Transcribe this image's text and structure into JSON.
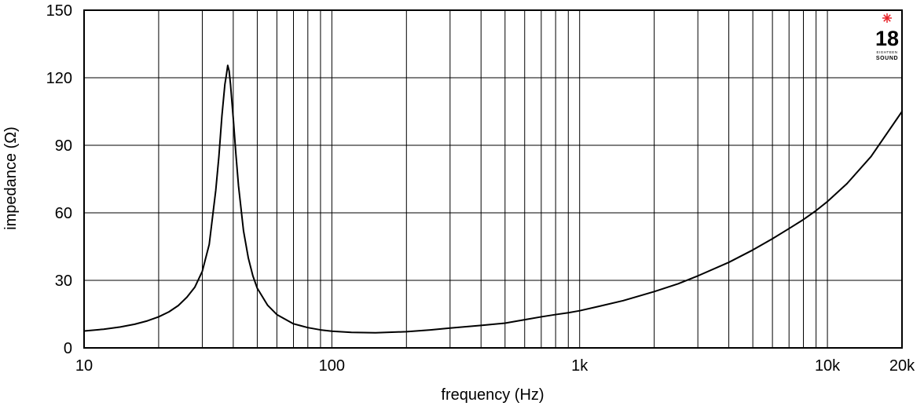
{
  "chart_data": {
    "type": "line",
    "title": "",
    "xlabel": "frequency (Hz)",
    "ylabel": "impedance (Ω)",
    "xscale": "log",
    "xlim": [
      10,
      20000
    ],
    "ylim": [
      0,
      150
    ],
    "grid": true,
    "x_ticks": [
      {
        "value": 10,
        "label": "10"
      },
      {
        "value": 100,
        "label": "100"
      },
      {
        "value": 1000,
        "label": "1k"
      },
      {
        "value": 10000,
        "label": "10k"
      },
      {
        "value": 20000,
        "label": "20k"
      }
    ],
    "y_ticks": [
      {
        "value": 0,
        "label": "0"
      },
      {
        "value": 30,
        "label": "30"
      },
      {
        "value": 60,
        "label": "60"
      },
      {
        "value": 90,
        "label": "90"
      },
      {
        "value": 120,
        "label": "120"
      },
      {
        "value": 150,
        "label": "150"
      }
    ],
    "series": [
      {
        "x": [
          10,
          12,
          14,
          16,
          18,
          20,
          22,
          24,
          26,
          28,
          30,
          32,
          34,
          35,
          36,
          37,
          37.5,
          38,
          38.5,
          39,
          40,
          41,
          42,
          44,
          46,
          48,
          50,
          55,
          60,
          70,
          80,
          90,
          100,
          120,
          150,
          200,
          250,
          300,
          400,
          500,
          600,
          700,
          800,
          900,
          1000,
          1200,
          1500,
          2000,
          2500,
          3000,
          4000,
          5000,
          6000,
          7000,
          8000,
          9000,
          10000,
          12000,
          15000,
          20000
        ],
        "values": [
          7.5,
          8.3,
          9.3,
          10.5,
          12.0,
          13.8,
          16.0,
          18.8,
          22.5,
          27.0,
          34.0,
          46.0,
          70.0,
          85.0,
          103.0,
          117.0,
          121.0,
          125.5,
          123.0,
          117.0,
          102.0,
          86.0,
          72.0,
          52.0,
          40.0,
          32.0,
          26.5,
          19.0,
          14.8,
          10.7,
          9.0,
          8.0,
          7.4,
          6.9,
          6.7,
          7.2,
          8.0,
          8.8,
          10.0,
          11.0,
          12.5,
          13.8,
          14.8,
          15.6,
          16.5,
          18.5,
          21.0,
          25.0,
          28.5,
          32.0,
          38.0,
          43.5,
          48.5,
          53.0,
          57.0,
          61.0,
          65.0,
          73.0,
          85.0,
          105.0
        ]
      }
    ]
  },
  "logo": {
    "number": "18",
    "small_text": "EIGHTEEN",
    "brand_text": "SOUND",
    "star_color": "#e8242a"
  }
}
